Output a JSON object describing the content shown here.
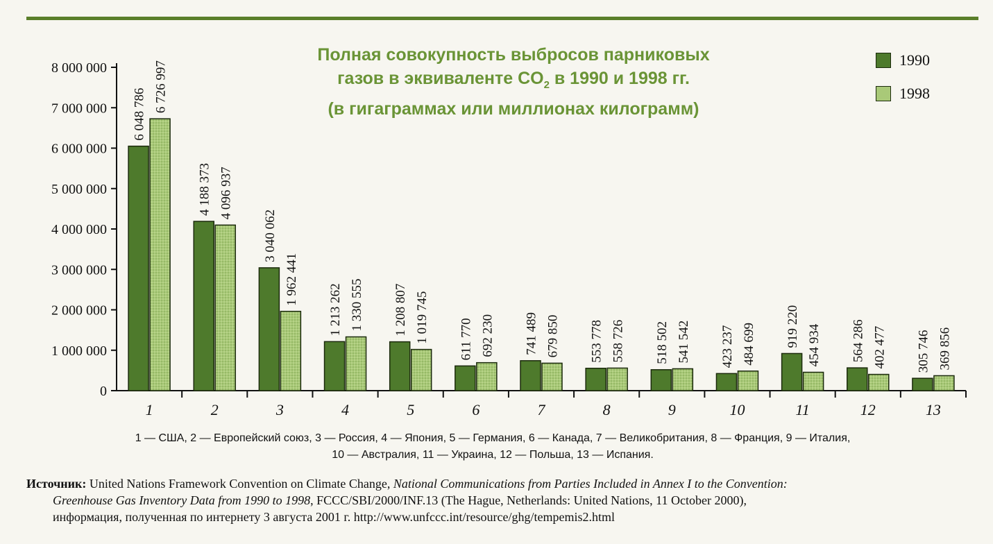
{
  "chart_data": {
    "type": "bar",
    "title_lines": [
      "Полная совокупность выбросов парниковых",
      "газов в эквиваленте CO",
      "2",
      " в 1990 и 1998  гг.",
      "(в гигаграммах или миллионах килограмм)"
    ],
    "categories": [
      "1",
      "2",
      "3",
      "4",
      "5",
      "6",
      "7",
      "8",
      "9",
      "10",
      "11",
      "12",
      "13"
    ],
    "series": [
      {
        "name": "1990",
        "values": [
          6048786,
          4188373,
          3040062,
          1213262,
          1208807,
          611770,
          741489,
          553778,
          518502,
          423237,
          919220,
          564286,
          305746
        ],
        "labels": [
          "6 048 786",
          "4 188 373",
          "3 040 062",
          "1 213 262",
          "1 208 807",
          "611 770",
          "741 489",
          "553 778",
          "518 502",
          "423 237",
          "919 220",
          "564 286",
          "305 746"
        ]
      },
      {
        "name": "1998",
        "values": [
          6726997,
          4096937,
          1962441,
          1330555,
          1019745,
          692230,
          679850,
          558726,
          541542,
          484699,
          454934,
          402477,
          369856
        ],
        "labels": [
          "6 726 997",
          "4 096 937",
          "1 962 441",
          "1 330 555",
          "1 019 745",
          "692 230",
          "679 850",
          "558 726",
          "541 542",
          "484 699",
          "454 934",
          "402 477",
          "369 856"
        ]
      }
    ],
    "ylim": [
      0,
      8000000
    ],
    "yticks": [
      0,
      1000000,
      2000000,
      3000000,
      4000000,
      5000000,
      6000000,
      7000000,
      8000000
    ],
    "ytick_labels": [
      "0",
      "1 000 000",
      "2 000 000",
      "3 000 000",
      "4 000 000",
      "5 000 000",
      "6 000 000",
      "7 000 000",
      "8 000 000"
    ],
    "colors": {
      "1990": "#4e7a2c",
      "1998": "#a9c978",
      "title": "#6a9436",
      "rule": "#5a7f2a"
    },
    "legend_position": "top-right",
    "grid": false
  },
  "caption": {
    "line1": "1 — США, 2 — Европейский союз, 3 — Россия, 4 — Япония, 5 — Германия, 6 — Канада, 7 — Великобритания, 8 — Франция, 9 — Италия,",
    "line2": "10 — Австралия, 11 — Украина, 12 — Польша, 13 — Испания."
  },
  "source": {
    "label": "Источник:",
    "part1": " United Nations Framework Convention on Climate Change, ",
    "italic1": "National Communications from Parties Included in Annex I to the Convention:",
    "italic2": "Greenhouse Gas Inventory Data from 1990 to 1998",
    "part2": ", FCCC/SBI/2000/INF.13 (The Hague, Netherlands: United Nations, 11 October 2000),",
    "line3": "информация, полученная по интернету 3 августа 2001 г. http://www.unfccc.int/resource/ghg/tempemis2.html"
  }
}
